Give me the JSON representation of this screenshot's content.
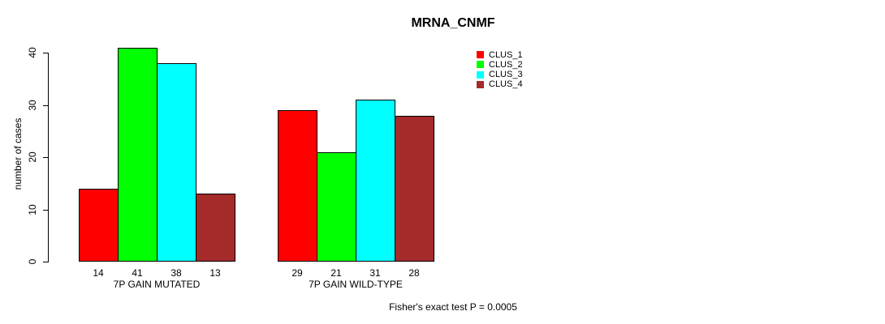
{
  "chart_data": {
    "type": "bar",
    "title": "MRNA_CNMF",
    "ylabel": "number of cases",
    "xlabel": "",
    "categories": [
      "7P GAIN MUTATED",
      "7P GAIN WILD-TYPE"
    ],
    "series": [
      {
        "name": "CLUS_1",
        "color": "#FF0000",
        "values": [
          14,
          29
        ]
      },
      {
        "name": "CLUS_2",
        "color": "#00FF00",
        "values": [
          41,
          21
        ]
      },
      {
        "name": "CLUS_3",
        "color": "#00FFFF",
        "values": [
          38,
          31
        ]
      },
      {
        "name": "CLUS_4",
        "color": "#A52A2A",
        "values": [
          13,
          28
        ]
      }
    ],
    "yticks": [
      0,
      10,
      20,
      30,
      40
    ],
    "ylim": [
      0,
      41
    ],
    "grid": false,
    "legend_position": "inner-top-right",
    "annotation": "Fisher's exact test P = 0.0005"
  }
}
